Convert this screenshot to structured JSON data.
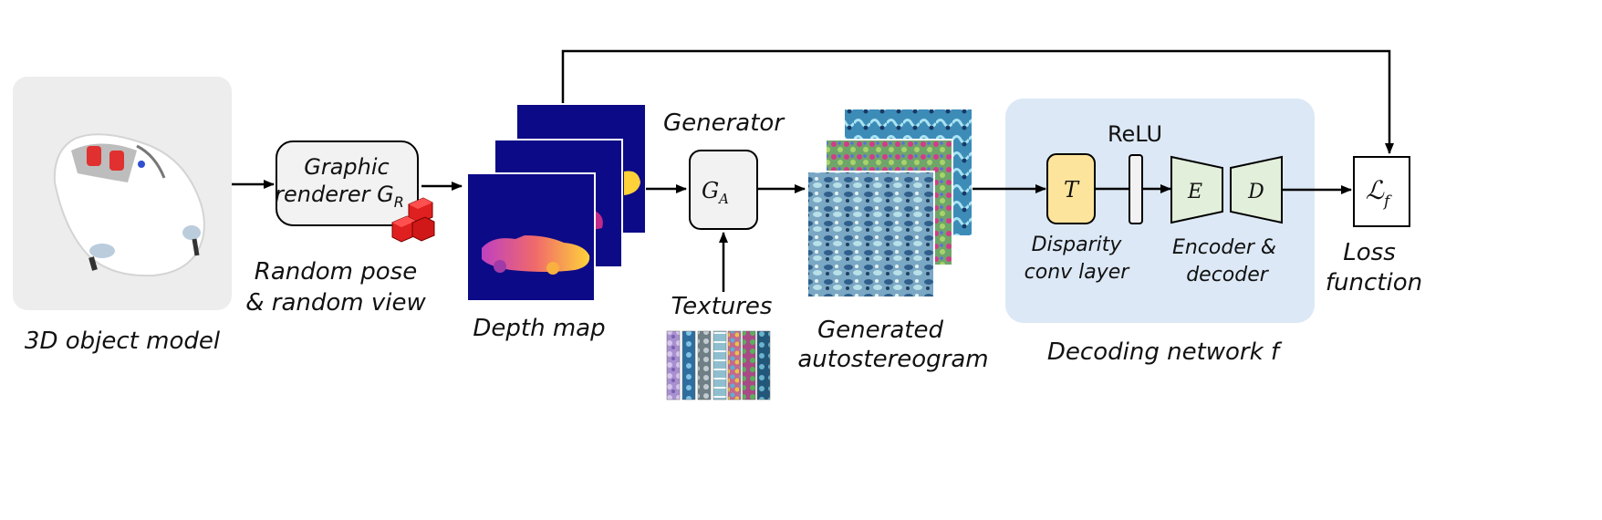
{
  "model": {
    "caption": "3D object model"
  },
  "renderer": {
    "line1": "Graphic",
    "line2_prefix": "renderer G",
    "sub": "R",
    "caption_line1": "Random pose",
    "caption_line2": "& random view"
  },
  "depth": {
    "caption": "Depth map"
  },
  "generator": {
    "title": "Generator",
    "symbol": "G",
    "sub": "A"
  },
  "textures": {
    "caption": "Textures"
  },
  "autostereogram": {
    "caption_line1": "Generated",
    "caption_line2": "autostereogram"
  },
  "decoder": {
    "relu_label": "ReLU",
    "disparity_symbol": "T",
    "disparity_line1": "Disparity",
    "disparity_line2": "conv layer",
    "encoder_symbol": "E",
    "decoder_symbol": "D",
    "encdec_line1": "Encoder &",
    "encdec_line2": "decoder",
    "caption": "Decoding network f"
  },
  "loss": {
    "symbol": "ℒ",
    "sub": "f",
    "caption_line1": "Loss",
    "caption_line2": "function"
  },
  "colors": {
    "depth_bg": "#0d0a87",
    "decoder_bg": "#dce8f5",
    "disparity_fill": "#fde49c",
    "encdec_fill": "#e2efda",
    "box_fill": "#f2f2f2",
    "model_bg": "#ededed",
    "cube": "#e02020"
  }
}
